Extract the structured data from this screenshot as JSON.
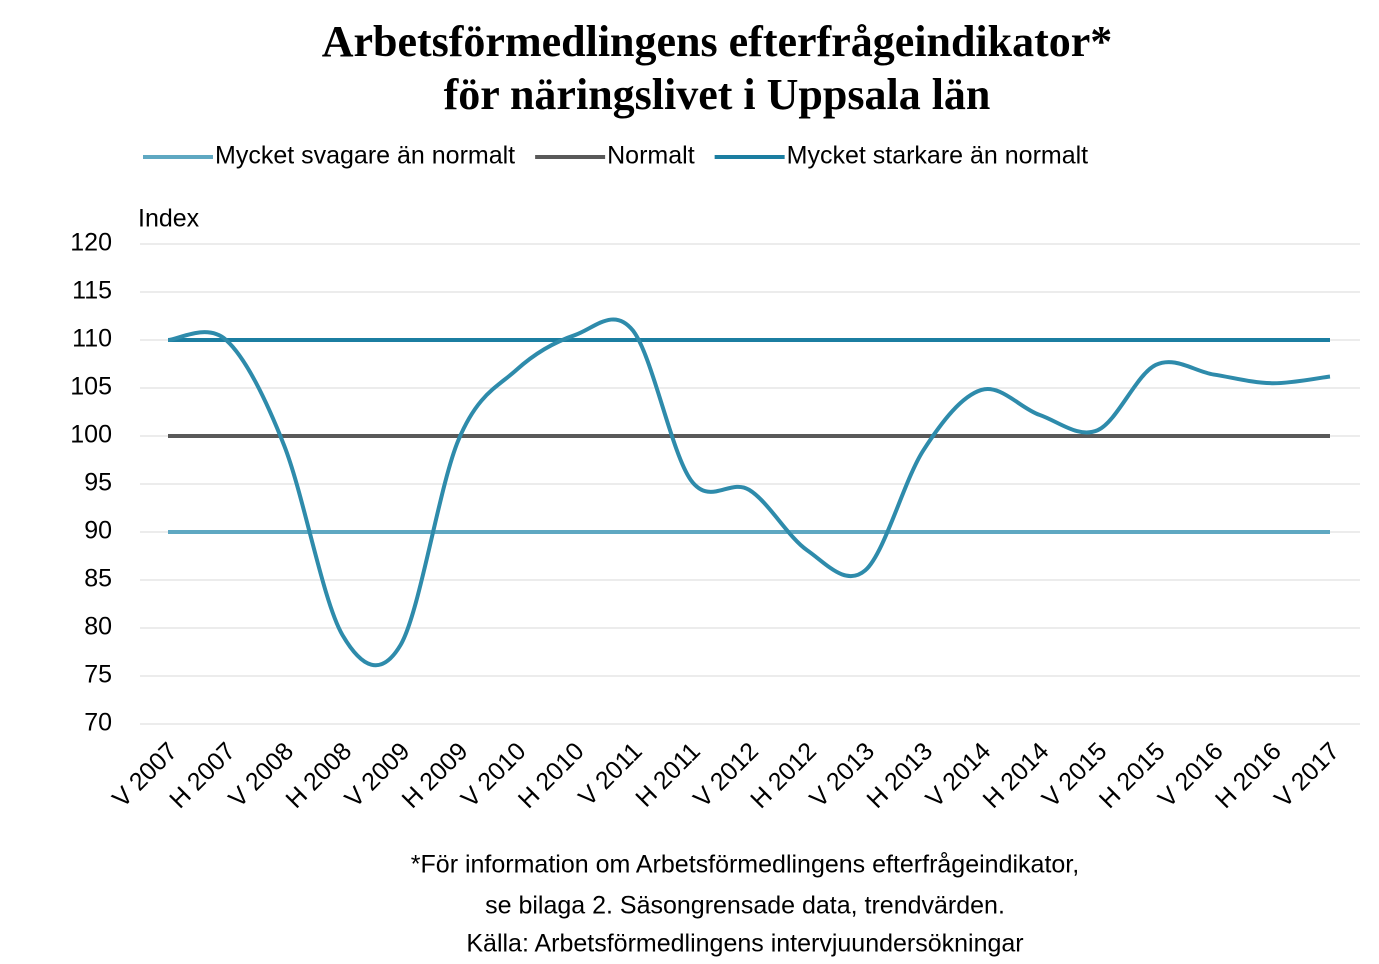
{
  "chart_data": {
    "type": "line",
    "title": [
      "Arbetsförmedlingens efterfrågeindikator*",
      "för näringslivet i Uppsala län"
    ],
    "y_label": "Index",
    "footnote": [
      "*För information om Arbetsförmedlingens  efterfrågeindikator,",
      "se bilaga 2. Säsongrensade data, trendvärden.",
      "Källa: Arbetsförmedlingens  intervjuundersökningar"
    ],
    "categories": [
      "V 2007",
      "H 2007",
      "V 2008",
      "H 2008",
      "V 2009",
      "H 2009",
      "V 2010",
      "H 2010",
      "V 2011",
      "H 2011",
      "V 2012",
      "H 2012",
      "V 2013",
      "H 2013",
      "V 2014",
      "H 2014",
      "V 2015",
      "H 2015",
      "V 2016",
      "H 2016",
      "V 2017"
    ],
    "series": [
      {
        "name": "Mycket svagare än normalt",
        "color": "#5fa8c2",
        "values": [
          90,
          90,
          90,
          90,
          90,
          90,
          90,
          90,
          90,
          90,
          90,
          90,
          90,
          90,
          90,
          90,
          90,
          90,
          90,
          90,
          90
        ]
      },
      {
        "name": "Normalt",
        "color": "#595959",
        "values": [
          100,
          100,
          100,
          100,
          100,
          100,
          100,
          100,
          100,
          100,
          100,
          100,
          100,
          100,
          100,
          100,
          100,
          100,
          100,
          100,
          100
        ]
      },
      {
        "name": "Mycket starkare än normalt",
        "color": "#1b7ea1",
        "values": [
          110,
          110,
          110,
          110,
          110,
          110,
          110,
          110,
          110,
          110,
          110,
          110,
          110,
          110,
          110,
          110,
          110,
          110,
          110,
          110,
          110
        ]
      },
      {
        "color": "#2e8bab",
        "smooth": true,
        "values": [
          110,
          110,
          99,
          79.3,
          78.2,
          99.6,
          106.9,
          110.5,
          111,
          95.4,
          94.4,
          88.1,
          86,
          98.5,
          104.8,
          102.2,
          100.6,
          107.4,
          106.4,
          105.5,
          106.2
        ]
      }
    ],
    "ylim": [
      70,
      120
    ],
    "yticks": [
      70,
      75,
      80,
      85,
      90,
      95,
      100,
      105,
      110,
      115,
      120
    ],
    "grid": true
  }
}
